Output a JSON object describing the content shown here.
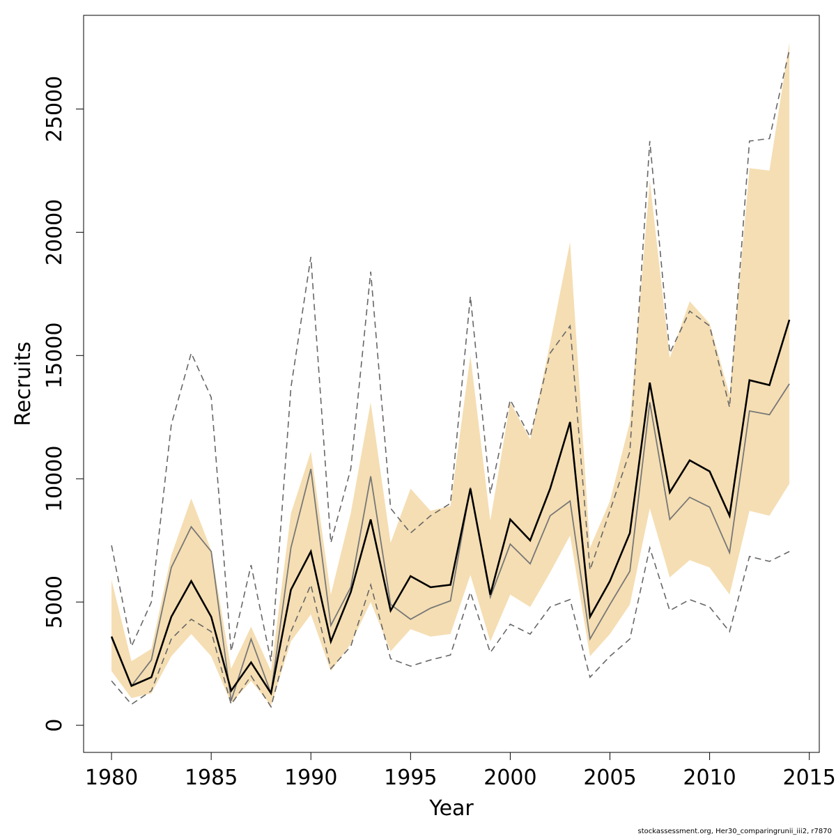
{
  "chart_data": {
    "type": "line",
    "xlabel": "Year",
    "ylabel": "Recruits",
    "xlim": [
      1978.6,
      2015.5
    ],
    "ylim": [
      -1100,
      28800
    ],
    "x_ticks": [
      1980,
      1985,
      1990,
      1995,
      2000,
      2005,
      2010,
      2015
    ],
    "y_ticks": [
      0,
      5000,
      10000,
      15000,
      20000,
      25000
    ],
    "x": [
      1980,
      1981,
      1982,
      1983,
      1984,
      1985,
      1986,
      1987,
      1988,
      1989,
      1990,
      1991,
      1992,
      1993,
      1994,
      1995,
      1996,
      1997,
      1998,
      1999,
      2000,
      2001,
      2002,
      2003,
      2004,
      2005,
      2006,
      2007,
      2008,
      2009,
      2010,
      2011,
      2012,
      2013,
      2014
    ],
    "band": {
      "color": "#f5deb3",
      "upper": [
        5900,
        2600,
        3100,
        6900,
        9200,
        7100,
        2300,
        4000,
        2200,
        8600,
        11100,
        5300,
        8600,
        13100,
        7400,
        9600,
        8700,
        8900,
        15000,
        8300,
        13100,
        11600,
        15500,
        19600,
        7200,
        9100,
        12300,
        22100,
        14900,
        17200,
        16300,
        13400,
        22600,
        22500,
        27700
      ],
      "lower": [
        2200,
        1100,
        1300,
        2800,
        3700,
        2800,
        900,
        1800,
        800,
        3400,
        4500,
        2200,
        3300,
        5000,
        3000,
        3900,
        3600,
        3700,
        6100,
        3400,
        5300,
        4800,
        6200,
        7700,
        2800,
        3700,
        4900,
        8800,
        6000,
        6700,
        6400,
        5300,
        8700,
        8500,
        9800
      ]
    },
    "series": [
      {
        "style": "solid-black-thick",
        "color": "#000000",
        "values": [
          3600,
          1600,
          1950,
          4400,
          5850,
          4400,
          1400,
          2550,
          1300,
          5500,
          7050,
          3400,
          5400,
          8350,
          4650,
          6050,
          5600,
          5700,
          9600,
          5300,
          8350,
          7500,
          9600,
          12300,
          4400,
          5850,
          7800,
          13900,
          9450,
          10750,
          10300,
          8500,
          14000,
          13800,
          16450
        ]
      },
      {
        "style": "solid-gray-thin",
        "color": "#777777",
        "values": [
          3550,
          1600,
          2650,
          6400,
          8050,
          7050,
          1000,
          3500,
          1300,
          7200,
          10400,
          4050,
          5600,
          10100,
          4900,
          4300,
          4750,
          5050,
          9650,
          5200,
          7350,
          6550,
          8500,
          9100,
          3500,
          4900,
          6250,
          13100,
          8350,
          9250,
          8850,
          7000,
          12750,
          12600,
          13850
        ]
      },
      {
        "style": "dashed-gray-upper",
        "color": "#666666",
        "values": [
          7300,
          3200,
          5000,
          12200,
          15100,
          13300,
          3000,
          6500,
          2600,
          13700,
          19000,
          7400,
          10400,
          18400,
          8800,
          7800,
          8500,
          9000,
          17400,
          9400,
          13200,
          11700,
          15100,
          16200,
          6300,
          8700,
          11100,
          23700,
          15100,
          16800,
          16200,
          12900,
          23700,
          23800,
          27400
        ]
      },
      {
        "style": "dashed-gray-lower",
        "color": "#666666",
        "values": [
          1800,
          850,
          1400,
          3500,
          4300,
          3800,
          850,
          2000,
          750,
          3800,
          5700,
          2300,
          3200,
          5700,
          2700,
          2400,
          2650,
          2850,
          5400,
          2950,
          4100,
          3700,
          4800,
          5100,
          1950,
          2800,
          3500,
          7200,
          4650,
          5100,
          4800,
          3800,
          6850,
          6650,
          7050
        ]
      }
    ]
  },
  "footer": {
    "source_note": "stockassessment.org, Her30_comparingrunii_iii2, r7870"
  }
}
